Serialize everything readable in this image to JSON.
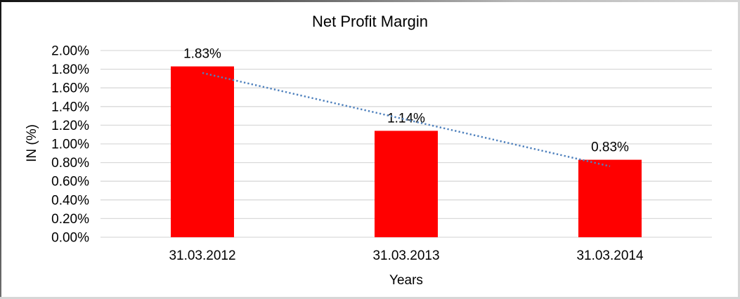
{
  "window": {
    "background": "#ffffff"
  },
  "chart": {
    "title": "Net Profit Margin",
    "x_axis_title": "Years",
    "y_axis_title": "IN (%)"
  },
  "chart_data": {
    "type": "bar",
    "title": "Net Profit Margin",
    "xlabel": "Years",
    "ylabel": "IN (%)",
    "categories": [
      "31.03.2012",
      "31.03.2013",
      "31.03.2014"
    ],
    "series": [
      {
        "name": "Net Profit Margin",
        "values": [
          1.83,
          1.14,
          0.83
        ]
      }
    ],
    "value_labels": [
      "1.83%",
      "1.14%",
      "0.83%"
    ],
    "ylim": [
      0,
      2.0
    ],
    "yticks": [
      {
        "value": 0.0,
        "label": "0.00%"
      },
      {
        "value": 0.2,
        "label": "0.20%"
      },
      {
        "value": 0.4,
        "label": "0.40%"
      },
      {
        "value": 0.6,
        "label": "0.60%"
      },
      {
        "value": 0.8,
        "label": "0.80%"
      },
      {
        "value": 1.0,
        "label": "1.00%"
      },
      {
        "value": 1.2,
        "label": "1.20%"
      },
      {
        "value": 1.4,
        "label": "1.40%"
      },
      {
        "value": 1.6,
        "label": "1.60%"
      },
      {
        "value": 1.8,
        "label": "1.80%"
      },
      {
        "value": 2.0,
        "label": "2.00%"
      }
    ],
    "grid": true,
    "legend": false,
    "bar_color": "#FF0000",
    "gridline_color": "#D9D9D9",
    "trendline": {
      "type": "linear",
      "style": "dotted",
      "color": "#4F81BD",
      "values": [
        1.76,
        1.26,
        0.76
      ]
    }
  }
}
